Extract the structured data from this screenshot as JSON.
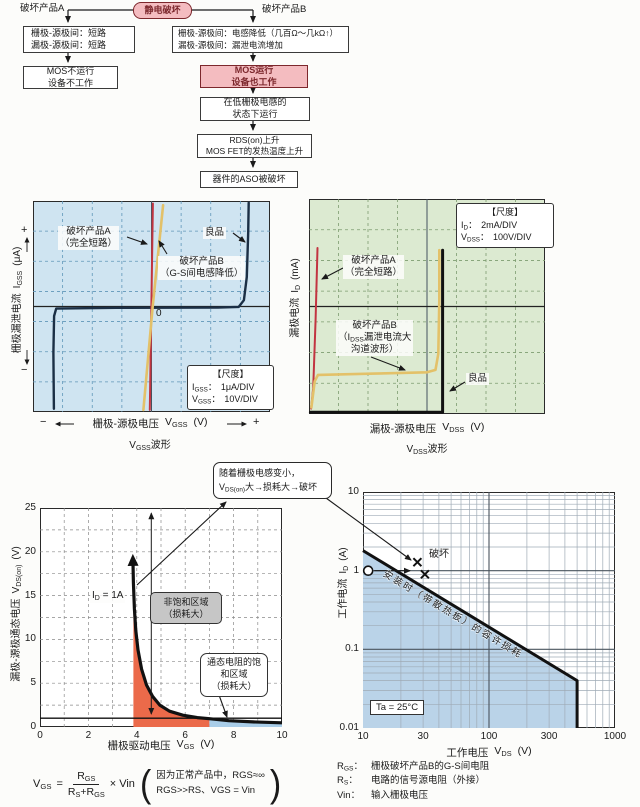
{
  "colors": {
    "pink": "#f4bcc0",
    "pink_dark": "#7c272c",
    "chart1_bg": "#cfe4f1",
    "chart1_grid": "#6096b8",
    "chart2_bg": "#dcead1",
    "chart2_grid": "#7d9c70",
    "good_trace": "#1b2f45",
    "product_a_trace": "#c23440",
    "product_b_trace": "#e3c169",
    "nonsat_region": "#eb6a4a",
    "sat_region": "#a9cde8",
    "soa_fill": "#bad3e8",
    "ink": "#1a1a1a"
  },
  "flowchart": {
    "title": "静电破坏",
    "branch_a": "破坏产品A",
    "branch_b": "破坏产品B",
    "a1l1": "栅极-源极间：短路",
    "a1l2": "漏极-源极间：短路",
    "a2l1": "MOS不运行",
    "a2l2": "设备不工作",
    "b1l1": "栅极-源极间：电感降低（几百Ω～几kΩ↑）",
    "b1l2": "漏极-源极间：漏泄电流增加",
    "b2l1": "MOS运行",
    "b2l2": "设备也工作",
    "b3l1": "在低栅极电感的",
    "b3l2": "状态下运行",
    "b4l1": "RDS(on)上升",
    "b4l2": "MOS FET的发热温度上升",
    "b5": "器件的ASO被破坏"
  },
  "chart_data": [
    {
      "id": "vgss-trace",
      "type": "line",
      "zero_label": "0",
      "grid": {
        "cols": 8,
        "rows": 7,
        "style": "dashed"
      },
      "scale": {
        "title": "【尺度】",
        "rows": [
          {
            "sym": "I",
            "sub": "GSS",
            "sep": "：",
            "val": "1μA/DIV"
          },
          {
            "sym": "V",
            "sub": "GSS",
            "sep": "：",
            "val": "10V/DIV"
          }
        ]
      },
      "ylabel": {
        "cn": "栅极漏泄电流",
        "sym": "I",
        "sub": "GSS",
        "unit": "(μA)",
        "pos": "+",
        "neg": "−"
      },
      "xlabel": {
        "cn": "栅极-源极电压",
        "sym": "V",
        "sub": "GSS",
        "unit": "(V)",
        "neg": "−",
        "pos": "+"
      },
      "caption": {
        "sym": "V",
        "sub": "GSS",
        "rest": "波形"
      },
      "labels": {
        "a1": "破坏产品A",
        "a2": "（完全短路）",
        "good": "良品",
        "b1": "破坏产品B",
        "b2": "（G-S间电感降低）"
      },
      "series": [
        {
          "key": "good-device-trace",
          "name": "良品",
          "color": "#1b2f45",
          "width": 2.4,
          "points_frac": [
            [
              0.088,
              0.985
            ],
            [
              0.086,
              0.72
            ],
            [
              0.089,
              0.545
            ],
            [
              0.098,
              0.51
            ],
            [
              0.35,
              0.506
            ],
            [
              0.78,
              0.505
            ],
            [
              0.868,
              0.502
            ],
            [
              0.89,
              0.47
            ],
            [
              0.902,
              0.36
            ],
            [
              0.908,
              0.15
            ],
            [
              0.91,
              0.008
            ]
          ]
        },
        {
          "key": "product-a-trace",
          "name": "破坏产品A（完全短路）",
          "color": "#c23440",
          "width": 2,
          "points_frac": [
            [
              0.506,
              0.012
            ],
            [
              0.493,
              0.99
            ]
          ]
        },
        {
          "key": "product-b-trace",
          "name": "破坏产品B（G-S间电感降低）",
          "color": "#e3c169",
          "width": 2.6,
          "points_frac": [
            [
              0.549,
              0.02
            ],
            [
              0.505,
              0.5
            ],
            [
              0.466,
              0.99
            ]
          ]
        }
      ]
    },
    {
      "id": "vdss-trace",
      "type": "line",
      "grid": {
        "cols": 8,
        "rows": 7,
        "style": "dashed"
      },
      "scale": {
        "title": "【尺度】",
        "rows": [
          {
            "sym": "I",
            "sub": "D",
            "sep": "：",
            "val": "2mA/DIV"
          },
          {
            "sym": "V",
            "sub": "DSS",
            "sep": "：",
            "val": "100V/DIV"
          }
        ]
      },
      "ylabel": {
        "cn": "漏极电流",
        "sym": "I",
        "sub": "D",
        "unit": "(mA)"
      },
      "xlabel": {
        "cn": "漏极-源极电压",
        "sym": "V",
        "sub": "DSS",
        "unit": "(V)"
      },
      "caption": {
        "sym": "V",
        "sub": "DSS",
        "rest": "波形"
      },
      "labels": {
        "a1": "破坏产品A",
        "a2": "（完全短路）",
        "good": "良品",
        "b1": "破坏产品B",
        "b2pre": "（",
        "b2sym": "I",
        "b2sub": "DSS",
        "b2rest": "漏泄电流大",
        "b3": "沟道波形）"
      },
      "series": [
        {
          "key": "product-a-trace",
          "name": "破坏产品A（完全短路）",
          "color": "#c23440",
          "width": 2,
          "points_frac": [
            [
              0.036,
              0.228
            ],
            [
              0.028,
              0.56
            ],
            [
              0.018,
              0.88
            ],
            [
              0.009,
              0.975
            ]
          ]
        },
        {
          "key": "product-b-trace",
          "name": "破坏产品B（IDSS漏泄电流大）",
          "color": "#e3c169",
          "width": 2.6,
          "points_frac": [
            [
              0.01,
              0.97
            ],
            [
              0.024,
              0.848
            ],
            [
              0.038,
              0.818
            ],
            [
              0.28,
              0.812
            ],
            [
              0.5,
              0.806
            ],
            [
              0.536,
              0.795
            ],
            [
              0.548,
              0.72
            ],
            [
              0.552,
              0.47
            ],
            [
              0.552,
              0.238
            ]
          ]
        },
        {
          "key": "good-device-trace",
          "name": "良品",
          "color": "#111111",
          "width": 3,
          "points_frac": [
            [
              0.006,
              0.992
            ],
            [
              0.566,
              0.992
            ],
            [
              0.566,
              0.238
            ]
          ]
        }
      ]
    },
    {
      "id": "vdson-vs-vgs",
      "type": "line",
      "xlim": [
        0,
        10
      ],
      "ylim": [
        0,
        25
      ],
      "xticks": [
        0,
        2,
        4,
        6,
        8,
        10
      ],
      "yticks": [
        0,
        5,
        10,
        15,
        20,
        25
      ],
      "xlabel": {
        "cn": "栅极驱动电压",
        "sym": "V",
        "sub": "GS",
        "unit": "(V)"
      },
      "ylabel": {
        "cn": "漏极-源极通态电压",
        "sym": "V",
        "sub": "DS(on)",
        "unit": "(V)"
      },
      "curve": {
        "key": "vdson-curve",
        "name": "VDS(on) (ID = 1A)",
        "color": "#111111",
        "width": 3.2,
        "points": [
          [
            10,
            0.48
          ],
          [
            8.8,
            0.58
          ],
          [
            7.8,
            0.72
          ],
          [
            7.0,
            0.95
          ],
          [
            6.5,
            1.07
          ],
          [
            5.9,
            1.35
          ],
          [
            5.35,
            1.8
          ],
          [
            4.95,
            2.5
          ],
          [
            4.65,
            3.5
          ],
          [
            4.4,
            4.8
          ],
          [
            4.2,
            6.6
          ],
          [
            4.05,
            8.8
          ],
          [
            3.96,
            11
          ],
          [
            3.9,
            13.5
          ],
          [
            3.86,
            16.5
          ],
          [
            3.84,
            19.3
          ]
        ]
      },
      "regions": [
        {
          "key": "non-saturation-region",
          "name": "非饱和区域（损耗大）",
          "color": "#eb6a4a",
          "points": [
            [
              3.86,
              15.6
            ],
            [
              3.92,
              12.5
            ],
            [
              4.0,
              10.2
            ],
            [
              4.12,
              8.0
            ],
            [
              4.28,
              6.0
            ],
            [
              4.5,
              4.4
            ],
            [
              4.75,
              3.2
            ],
            [
              5.05,
              2.35
            ],
            [
              5.45,
              1.72
            ],
            [
              6.0,
              1.28
            ],
            [
              6.55,
              1.05
            ],
            [
              7.0,
              0.95
            ],
            [
              7.0,
              0
            ],
            [
              3.86,
              0
            ]
          ]
        },
        {
          "key": "saturation-region",
          "name": "通态电阻的饱和区域（损耗大）",
          "color": "#a9cde8",
          "points": [
            [
              7.0,
              0.95
            ],
            [
              7.8,
              0.72
            ],
            [
              8.8,
              0.58
            ],
            [
              10,
              0.48
            ],
            [
              10,
              0
            ],
            [
              7.0,
              0
            ]
          ]
        }
      ],
      "ref_line": {
        "y": 1
      },
      "v_arrow": {
        "x": 4.6,
        "y1": 1.5,
        "y2": 24.4
      },
      "annotations": {
        "id_sym": "I",
        "id_sub": "D",
        "id_rest": " = 1A",
        "nonsat1": "非饱和区域",
        "nonsat2": "（损耗大）",
        "sat1": "通态电阻的饱",
        "sat2": "和区域",
        "sat3": "（损耗大）",
        "callout1": "随着栅极电感变小，",
        "callout_sym": "V",
        "callout_sub": "DS(on)",
        "callout_rest": "大→损耗大→破坏"
      }
    },
    {
      "id": "soa",
      "type": "line",
      "xscale": "log",
      "yscale": "log",
      "xlim": [
        10,
        1000
      ],
      "ylim": [
        0.01,
        10
      ],
      "xticks": [
        "10",
        "30",
        "100",
        "300",
        "1000"
      ],
      "xtick_vals": [
        10,
        30,
        100,
        300,
        1000
      ],
      "yticks": [
        "10",
        "1",
        "0.1",
        "0.01"
      ],
      "ytick_vals": [
        10,
        1,
        0.1,
        0.01
      ],
      "xlabel": {
        "cn": "工作电压",
        "sym": "V",
        "sub": "DS",
        "unit": "(V)"
      },
      "ylabel": {
        "cn": "工作电流",
        "sym": "I",
        "sub": "D",
        "unit": "(A)"
      },
      "line": {
        "key": "soa-limit-line",
        "name": "安装时（带散热板）的容许损耗",
        "color": "#111111",
        "width": 3,
        "points": [
          [
            10,
            1.8
          ],
          [
            500,
            0.04
          ],
          [
            500,
            0.01
          ]
        ]
      },
      "fill_points": [
        [
          10,
          1.8
        ],
        [
          500,
          0.04
        ],
        [
          500,
          0.01
        ],
        [
          10,
          0.01
        ]
      ],
      "markers": {
        "circle": [
          11,
          1
        ],
        "x_marks": [
          [
            27,
            1.28
          ],
          [
            31,
            0.9
          ]
        ],
        "break_label": "破坏",
        "ta_label": "Ta = 25°C",
        "diag_label": "安装时（带散热板）的容许损耗"
      }
    }
  ],
  "formula": {
    "lhs_sym": "V",
    "lhs_sub": "GS",
    "eq": "=",
    "num_sym": "R",
    "num_sub": "GS",
    "den_sym1": "R",
    "den_sub1": "S",
    "den_plus": "+",
    "den_sym2": "R",
    "den_sub2": "GS",
    "times": "× Vin",
    "open": "(",
    "close": ")",
    "note1": "因为正常产品中，RGS≈∞",
    "note2": "RGS>>RS、VGS = Vin"
  },
  "legend": {
    "rows": [
      {
        "sym": "R",
        "sub": "GS",
        "sep": "：",
        "desc": "栅极破坏产品B的G-S间电阻"
      },
      {
        "sym": "R",
        "sub": "S",
        "sep": "：",
        "desc": "电路的信号源电阻（外接）"
      },
      {
        "sym": "Vin",
        "sub": "",
        "sep": "：",
        "desc": "输入栅极电压"
      }
    ]
  }
}
